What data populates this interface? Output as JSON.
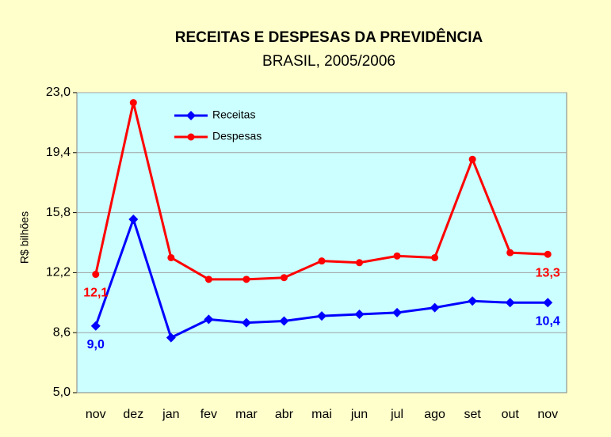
{
  "chart_data": {
    "type": "line",
    "title": "RECEITAS E DESPESAS DA PREVIDÊNCIA",
    "subtitle": "BRASIL, 2005/2006",
    "ylabel": "R$ bilhões",
    "categories": [
      "nov",
      "dez",
      "jan",
      "fev",
      "mar",
      "abr",
      "mai",
      "jun",
      "jul",
      "ago",
      "set",
      "out",
      "nov"
    ],
    "series": [
      {
        "name": "Receitas",
        "color": "#0000ff",
        "marker": "diamond",
        "values": [
          9.0,
          15.4,
          8.3,
          9.4,
          9.2,
          9.3,
          9.6,
          9.7,
          9.8,
          10.1,
          10.5,
          10.4,
          10.4
        ],
        "value_labels": [
          "9,0",
          null,
          null,
          null,
          null,
          null,
          null,
          null,
          null,
          null,
          null,
          null,
          "10,4"
        ]
      },
      {
        "name": "Despesas",
        "color": "#ff0000",
        "marker": "circle",
        "values": [
          12.1,
          22.4,
          13.1,
          11.8,
          11.8,
          11.9,
          12.9,
          12.8,
          13.2,
          13.1,
          19.0,
          13.4,
          13.3
        ],
        "value_labels": [
          "12,1",
          null,
          null,
          null,
          null,
          null,
          null,
          null,
          null,
          null,
          null,
          null,
          "13,3"
        ]
      }
    ],
    "ylim": [
      5.0,
      23.0
    ],
    "yticks": [
      {
        "value": 5.0,
        "label": "5,0"
      },
      {
        "value": 8.6,
        "label": "8,6"
      },
      {
        "value": 12.2,
        "label": "12,2"
      },
      {
        "value": 15.8,
        "label": "15,8"
      },
      {
        "value": 19.4,
        "label": "19,4"
      },
      {
        "value": 23.0,
        "label": "23,0"
      }
    ],
    "grid": true,
    "legend": "upper left"
  }
}
